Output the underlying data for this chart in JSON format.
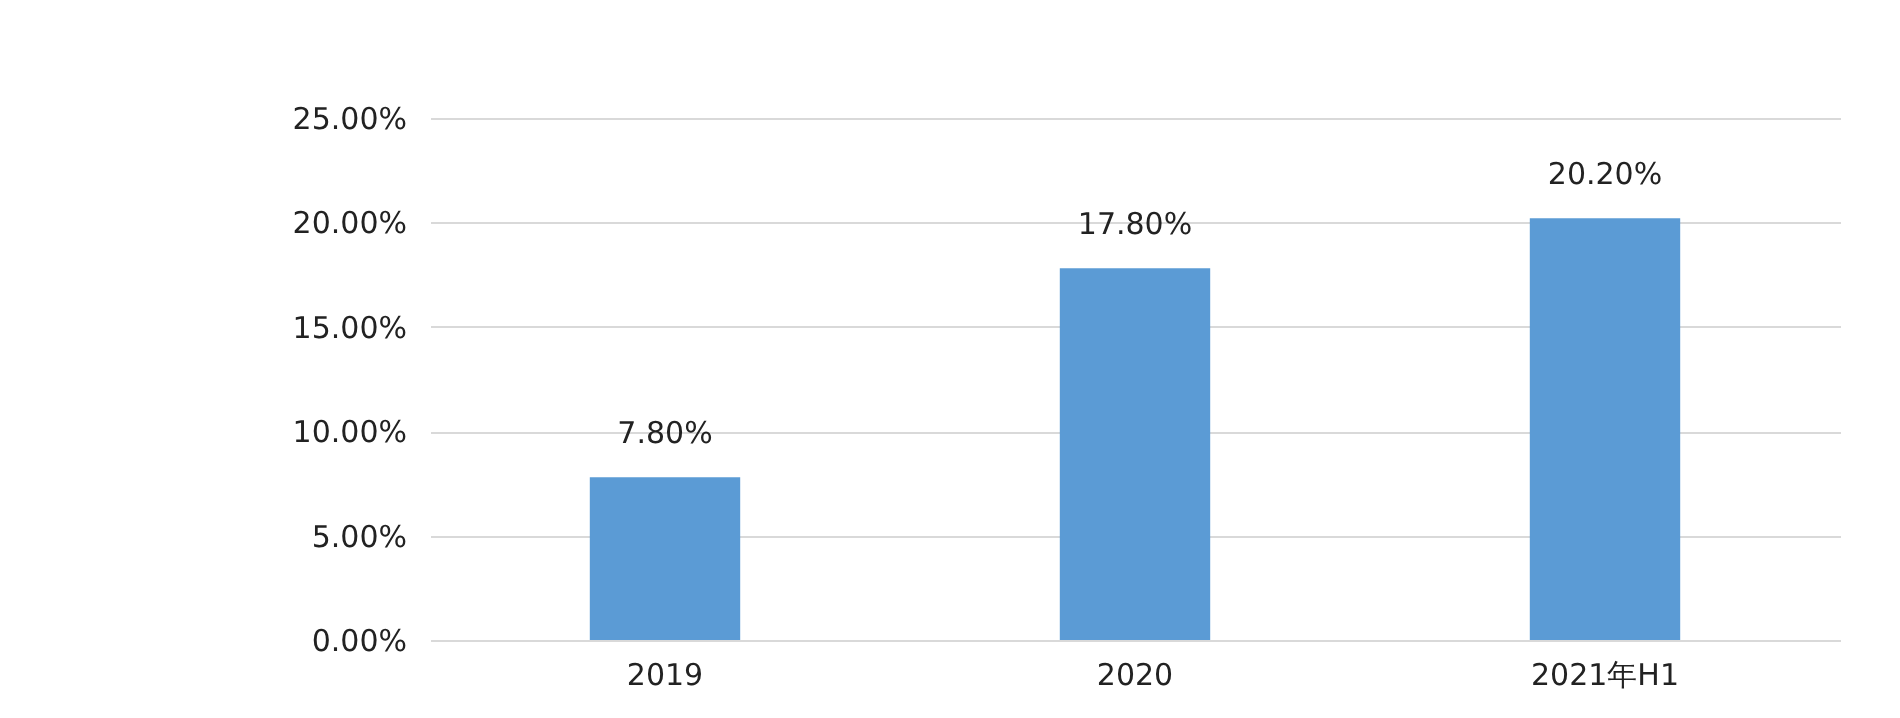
{
  "chart_data": {
    "type": "bar",
    "categories": [
      "2019",
      "2020",
      "2021年H1"
    ],
    "values": [
      7.8,
      17.8,
      20.2
    ],
    "color": "#5b9bd5",
    "value_labels": [
      "7.80%",
      "17.80%",
      "20.20%"
    ],
    "ylim": [
      0,
      25
    ],
    "yticks": [
      {
        "value": 0,
        "label": "0.00%"
      },
      {
        "value": 5,
        "label": "5.00%"
      },
      {
        "value": 10,
        "label": "10.00%"
      },
      {
        "value": 15,
        "label": "15.00%"
      },
      {
        "value": 20,
        "label": "20.00%"
      },
      {
        "value": 25,
        "label": "25.00%"
      }
    ],
    "grid": "y"
  }
}
